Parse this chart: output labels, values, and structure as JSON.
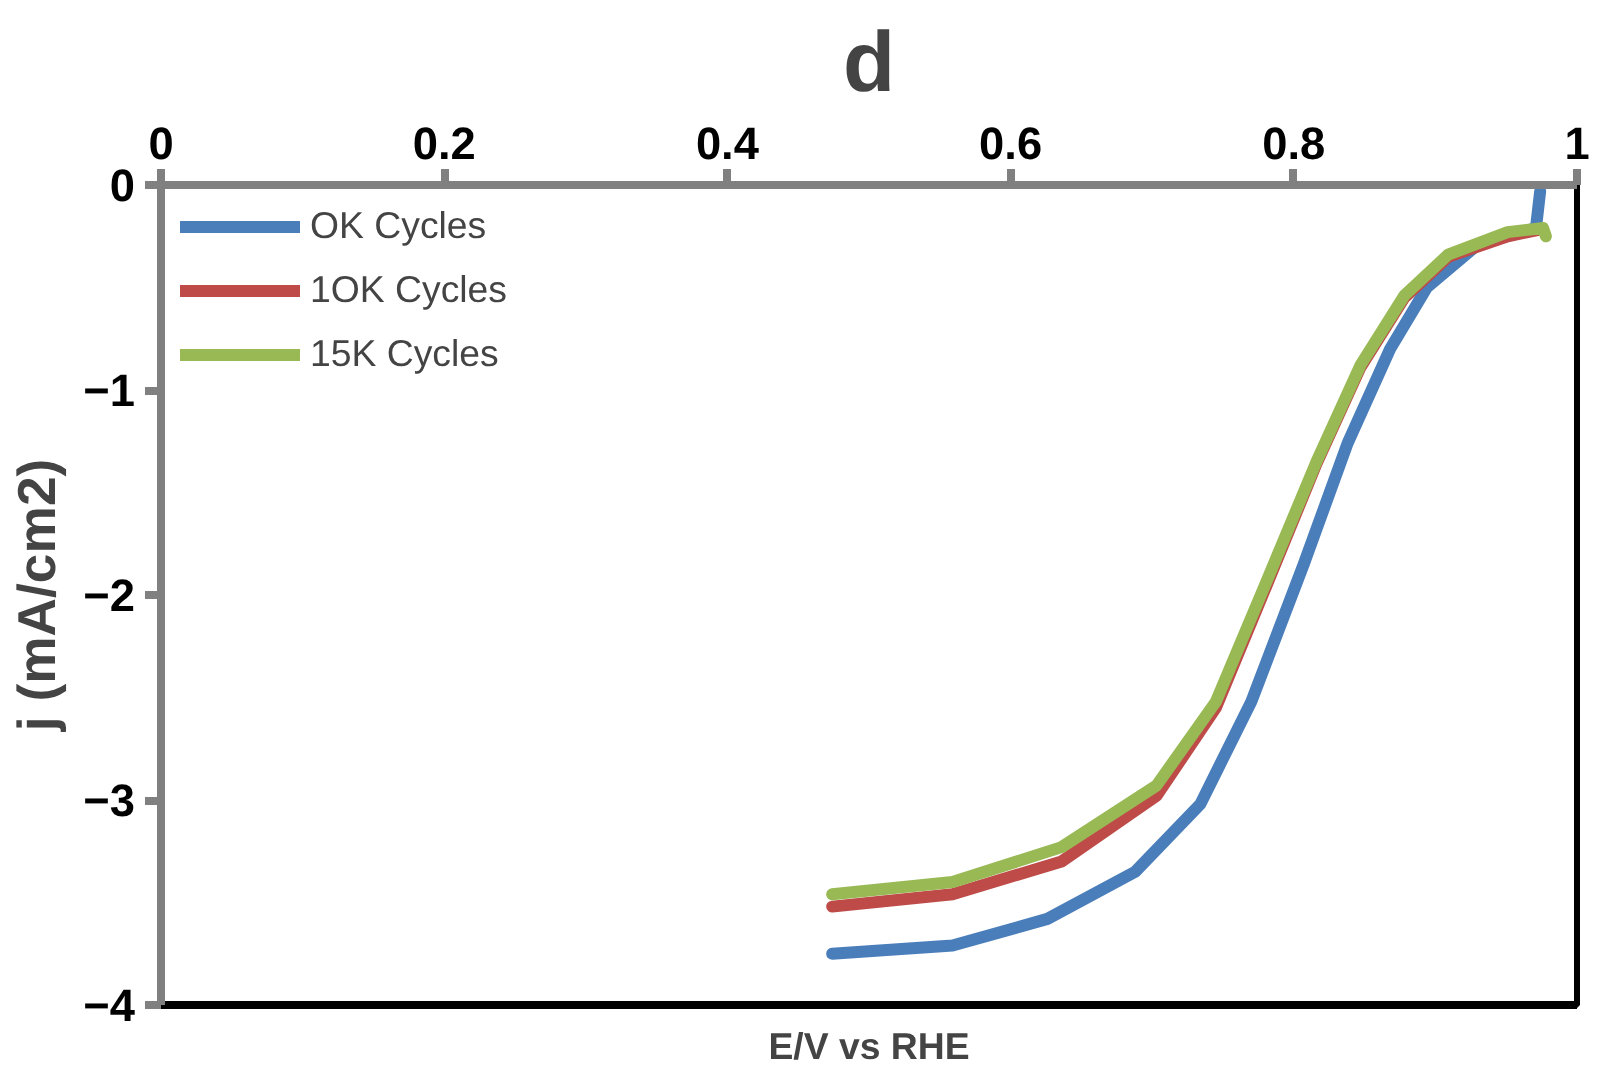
{
  "chart_data": {
    "type": "line",
    "title": "d",
    "xlabel": "E/V vs RHE",
    "ylabel": "j (mA/cm2)",
    "xlim": [
      0,
      1
    ],
    "ylim": [
      -4,
      0
    ],
    "xticks": [
      0,
      0.2,
      0.4,
      0.6,
      0.8,
      1
    ],
    "yticks": [
      0,
      -1,
      -2,
      -3,
      -4
    ],
    "grid": false,
    "legend": "top left",
    "line_style": "solid",
    "marker": "none",
    "series": [
      {
        "name": "OK Cycles",
        "color": "#4a7ebb",
        "x": [
          0.474,
          0.559,
          0.626,
          0.688,
          0.734,
          0.77,
          0.807,
          0.838,
          0.868,
          0.894,
          0.93,
          0.971,
          0.974
        ],
        "values": [
          -3.75,
          -3.71,
          -3.58,
          -3.35,
          -3.02,
          -2.52,
          -1.85,
          -1.26,
          -0.8,
          -0.5,
          -0.29,
          -0.21,
          -0.03
        ]
      },
      {
        "name": "1OK Cycles",
        "color": "#be4b48",
        "x": [
          0.474,
          0.559,
          0.636,
          0.703,
          0.745,
          0.781,
          0.816,
          0.847,
          0.878,
          0.909,
          0.951,
          0.972
        ],
        "values": [
          -3.52,
          -3.46,
          -3.3,
          -2.98,
          -2.55,
          -1.95,
          -1.36,
          -0.89,
          -0.55,
          -0.35,
          -0.25,
          -0.22
        ]
      },
      {
        "name": "15K Cycles",
        "color": "#98b954",
        "x": [
          0.474,
          0.559,
          0.636,
          0.703,
          0.745,
          0.781,
          0.816,
          0.847,
          0.878,
          0.909,
          0.951,
          0.976,
          0.978
        ],
        "values": [
          -3.46,
          -3.4,
          -3.23,
          -2.93,
          -2.52,
          -1.93,
          -1.35,
          -0.88,
          -0.54,
          -0.34,
          -0.23,
          -0.21,
          -0.25
        ]
      }
    ]
  }
}
